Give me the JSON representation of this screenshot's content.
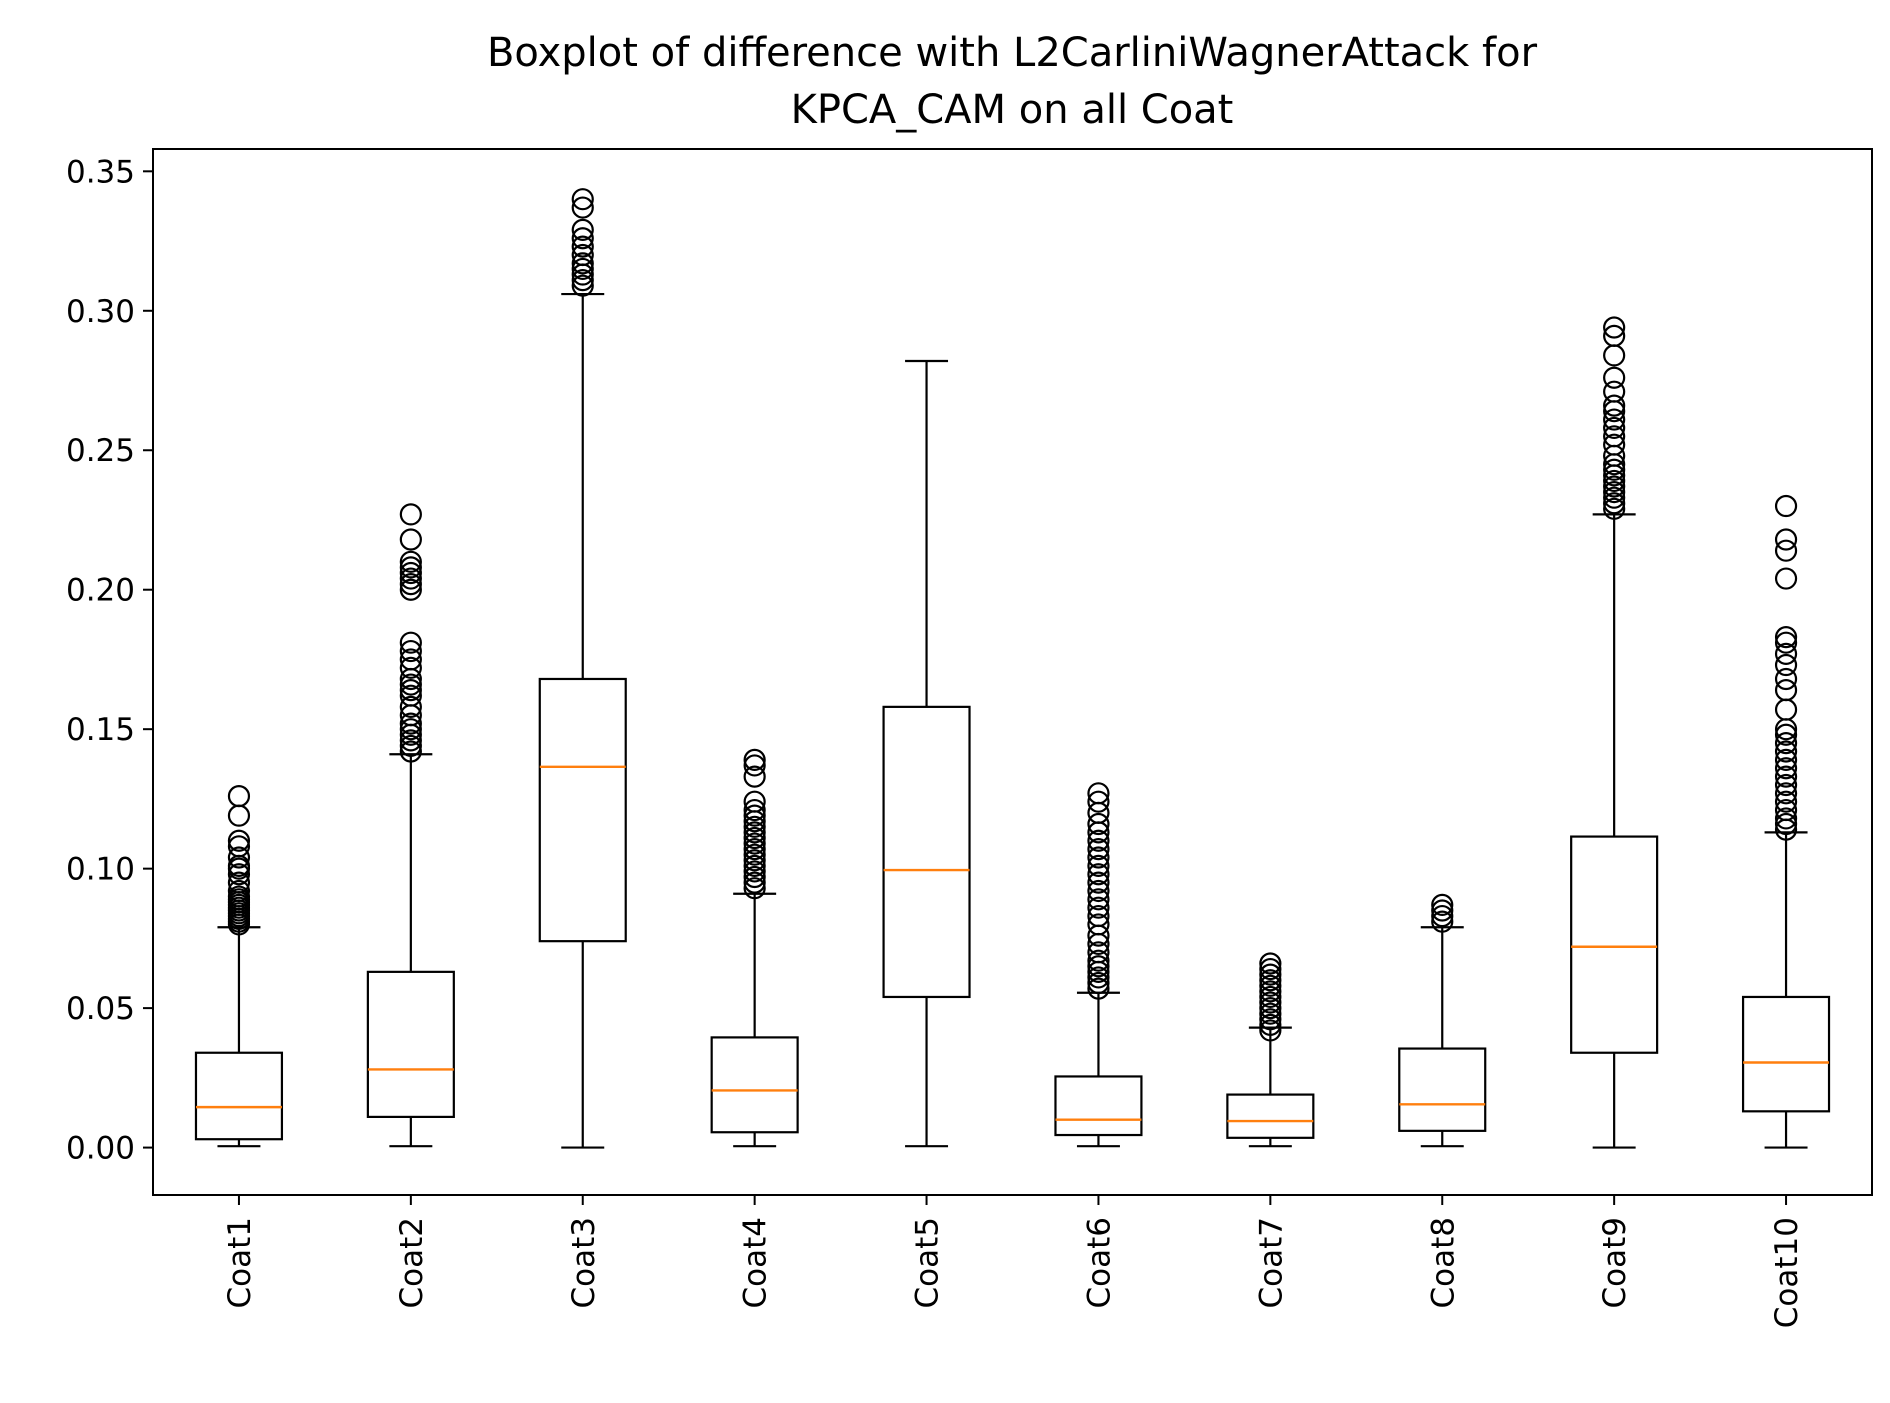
{
  "chart_data": {
    "type": "boxplot",
    "title_lines": [
      "Boxplot of difference with L2CarliniWagnerAttack for",
      "KPCA_CAM on all Coat"
    ],
    "xlabel": "",
    "ylabel": "",
    "ylim": [
      -0.017,
      0.358
    ],
    "yticks": [
      0.0,
      0.05,
      0.1,
      0.15,
      0.2,
      0.25,
      0.3,
      0.35
    ],
    "ytick_labels": [
      "0.00",
      "0.05",
      "0.10",
      "0.15",
      "0.20",
      "0.25",
      "0.30",
      "0.35"
    ],
    "grid": false,
    "colors": {
      "box": "#000000",
      "median": "#ff7f0e",
      "flier": "#000000"
    },
    "categories": [
      "Coat1",
      "Coat2",
      "Coat3",
      "Coat4",
      "Coat5",
      "Coat6",
      "Coat7",
      "Coat8",
      "Coat9",
      "Coat10"
    ],
    "boxes": [
      {
        "whisker_low": 0.0005,
        "q1": 0.003,
        "median": 0.0145,
        "q3": 0.034,
        "whisker_high": 0.079,
        "fliers": [
          0.08,
          0.081,
          0.082,
          0.083,
          0.084,
          0.085,
          0.086,
          0.087,
          0.088,
          0.089,
          0.09,
          0.092,
          0.095,
          0.098,
          0.1,
          0.101,
          0.104,
          0.108,
          0.11,
          0.119,
          0.126
        ]
      },
      {
        "whisker_low": 0.0005,
        "q1": 0.011,
        "median": 0.028,
        "q3": 0.063,
        "whisker_high": 0.141,
        "fliers": [
          0.142,
          0.144,
          0.146,
          0.148,
          0.15,
          0.152,
          0.155,
          0.158,
          0.162,
          0.164,
          0.166,
          0.168,
          0.172,
          0.175,
          0.178,
          0.181,
          0.2,
          0.202,
          0.204,
          0.206,
          0.208,
          0.21,
          0.218,
          0.227
        ]
      },
      {
        "whisker_low": 0.0,
        "q1": 0.074,
        "median": 0.1365,
        "q3": 0.168,
        "whisker_high": 0.306,
        "fliers": [
          0.309,
          0.311,
          0.313,
          0.315,
          0.317,
          0.32,
          0.323,
          0.326,
          0.329,
          0.337,
          0.34
        ]
      },
      {
        "whisker_low": 0.0005,
        "q1": 0.0055,
        "median": 0.0205,
        "q3": 0.0395,
        "whisker_high": 0.091,
        "fliers": [
          0.093,
          0.095,
          0.097,
          0.099,
          0.101,
          0.103,
          0.105,
          0.107,
          0.109,
          0.111,
          0.113,
          0.115,
          0.117,
          0.119,
          0.121,
          0.124,
          0.133,
          0.137,
          0.139
        ]
      },
      {
        "whisker_low": 0.0005,
        "q1": 0.054,
        "median": 0.0995,
        "q3": 0.158,
        "whisker_high": 0.282,
        "fliers": []
      },
      {
        "whisker_low": 0.0005,
        "q1": 0.0045,
        "median": 0.01,
        "q3": 0.0255,
        "whisker_high": 0.0555,
        "fliers": [
          0.057,
          0.059,
          0.061,
          0.063,
          0.065,
          0.067,
          0.07,
          0.073,
          0.076,
          0.08,
          0.083,
          0.086,
          0.089,
          0.092,
          0.095,
          0.098,
          0.101,
          0.104,
          0.107,
          0.11,
          0.113,
          0.116,
          0.12,
          0.124,
          0.127
        ]
      },
      {
        "whisker_low": 0.0005,
        "q1": 0.0035,
        "median": 0.0095,
        "q3": 0.019,
        "whisker_high": 0.043,
        "fliers": [
          0.042,
          0.044,
          0.046,
          0.048,
          0.05,
          0.052,
          0.054,
          0.056,
          0.058,
          0.06,
          0.062,
          0.064,
          0.066
        ]
      },
      {
        "whisker_low": 0.0005,
        "q1": 0.006,
        "median": 0.0155,
        "q3": 0.0355,
        "whisker_high": 0.079,
        "fliers": [
          0.081,
          0.083,
          0.085,
          0.087
        ]
      },
      {
        "whisker_low": 0.0,
        "q1": 0.034,
        "median": 0.072,
        "q3": 0.1115,
        "whisker_high": 0.227,
        "fliers": [
          0.229,
          0.231,
          0.233,
          0.235,
          0.237,
          0.239,
          0.241,
          0.243,
          0.245,
          0.248,
          0.252,
          0.255,
          0.258,
          0.261,
          0.264,
          0.266,
          0.271,
          0.276,
          0.284,
          0.291,
          0.294
        ]
      },
      {
        "whisker_low": 0.0,
        "q1": 0.013,
        "median": 0.0305,
        "q3": 0.054,
        "whisker_high": 0.113,
        "fliers": [
          0.114,
          0.116,
          0.118,
          0.121,
          0.124,
          0.127,
          0.13,
          0.133,
          0.136,
          0.139,
          0.142,
          0.145,
          0.148,
          0.15,
          0.157,
          0.164,
          0.168,
          0.173,
          0.177,
          0.181,
          0.183,
          0.204,
          0.214,
          0.218,
          0.23
        ]
      }
    ]
  }
}
